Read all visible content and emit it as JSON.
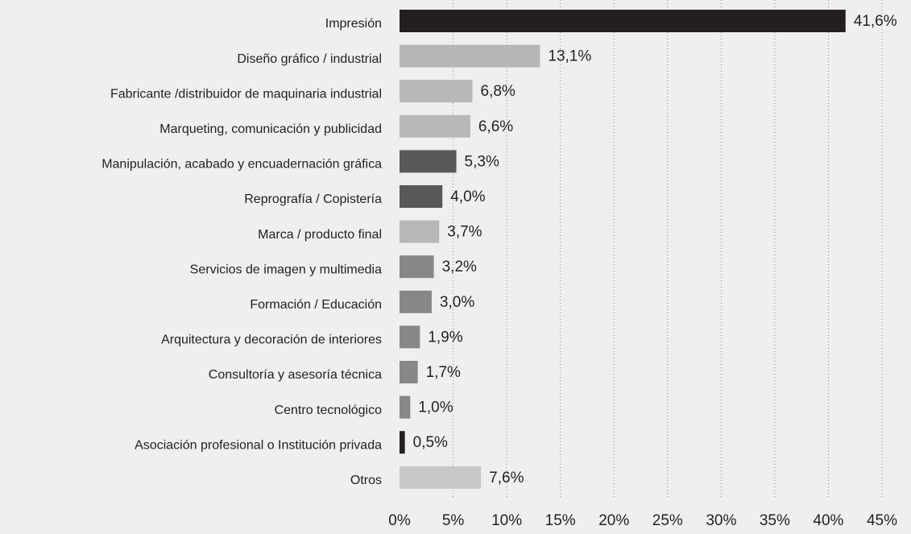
{
  "chart_data": {
    "type": "bar",
    "orientation": "horizontal",
    "categories": [
      "Impresión",
      "Diseño gráfico / industrial",
      "Fabricante /distribuidor de maquinaria industrial",
      "Marqueting, comunicación y publicidad",
      "Manipulación, acabado y encuadernación gráfica",
      "Reprografía / Copistería",
      "Marca / producto final",
      "Servicios de imagen y multimedia",
      "Formación / Educación",
      "Arquitectura y decoración de interiores",
      "Consultoría y asesoría técnica",
      "Centro tecnológico",
      "Asociación profesional o Institución privada",
      "Otros"
    ],
    "values": [
      41.6,
      13.1,
      6.8,
      6.6,
      5.3,
      4.0,
      3.7,
      3.2,
      3.0,
      1.9,
      1.7,
      1.0,
      0.5,
      7.6
    ],
    "value_labels": [
      "41,6%",
      "13,1%",
      "6,8%",
      "6,6%",
      "5,3%",
      "4,0%",
      "3,7%",
      "3,2%",
      "3,0%",
      "1,9%",
      "1,7%",
      "1,0%",
      "0,5%",
      "7,6%"
    ],
    "colors": [
      "#231f20",
      "#b6b6b8",
      "#b8b8ba",
      "#b8b8ba",
      "#58585a",
      "#58585a",
      "#b8b8ba",
      "#87878a",
      "#87878a",
      "#87878a",
      "#87878a",
      "#87878a",
      "#231f20",
      "#c8c8ca"
    ],
    "xlim": [
      0,
      45
    ],
    "xticks": [
      {
        "value": 0,
        "label": "0%"
      },
      {
        "value": 5,
        "label": "5%"
      },
      {
        "value": 10,
        "label": "10%"
      },
      {
        "value": 15,
        "label": "15%"
      },
      {
        "value": 20,
        "label": "20%"
      },
      {
        "value": 25,
        "label": "25%"
      },
      {
        "value": 30,
        "label": "30%"
      },
      {
        "value": 35,
        "label": "35%"
      },
      {
        "value": 40,
        "label": "40%"
      },
      {
        "value": 45,
        "label": "45%"
      }
    ],
    "grid": true
  }
}
